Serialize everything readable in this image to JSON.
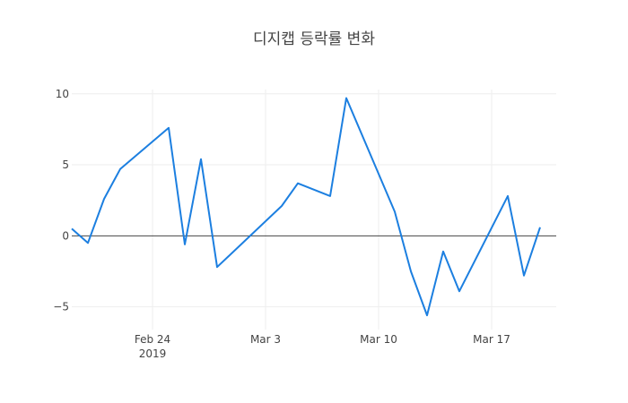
{
  "chart_data": {
    "type": "line",
    "title": "디지캡 등락률 변화",
    "xlabel": "",
    "ylabel": "",
    "x_ticks": [
      {
        "date": "2019-02-24",
        "label": "Feb 24",
        "sublabel": "2019"
      },
      {
        "date": "2019-03-03",
        "label": "Mar 3",
        "sublabel": ""
      },
      {
        "date": "2019-03-10",
        "label": "Mar 10",
        "sublabel": ""
      },
      {
        "date": "2019-03-17",
        "label": "Mar 17",
        "sublabel": ""
      }
    ],
    "y_ticks": [
      {
        "value": 10,
        "label": "10"
      },
      {
        "value": 5,
        "label": "5"
      },
      {
        "value": 0,
        "label": "0"
      },
      {
        "value": -5,
        "label": "−5"
      }
    ],
    "xlim": [
      "2019-02-19",
      "2019-03-21"
    ],
    "ylim": [
      -6.6,
      10.3
    ],
    "grid": true,
    "colors": {
      "line": "#1c7fe0",
      "grid": "#eeeeee",
      "zero_line": "#444444"
    },
    "series": [
      {
        "x": [
          "2019-02-19",
          "2019-02-20",
          "2019-02-21",
          "2019-02-22",
          "2019-02-25",
          "2019-02-26",
          "2019-02-27",
          "2019-02-28",
          "2019-03-04",
          "2019-03-05",
          "2019-03-07",
          "2019-03-08",
          "2019-03-11",
          "2019-03-12",
          "2019-03-13",
          "2019-03-14",
          "2019-03-15",
          "2019-03-18",
          "2019-03-19",
          "2019-03-20"
        ],
        "y": [
          0.5,
          -0.5,
          2.6,
          4.7,
          7.6,
          -0.6,
          5.4,
          -2.2,
          2.1,
          3.7,
          2.8,
          9.7,
          1.7,
          -2.5,
          -5.6,
          -1.1,
          -3.9,
          2.8,
          -2.8,
          0.6
        ]
      }
    ]
  }
}
